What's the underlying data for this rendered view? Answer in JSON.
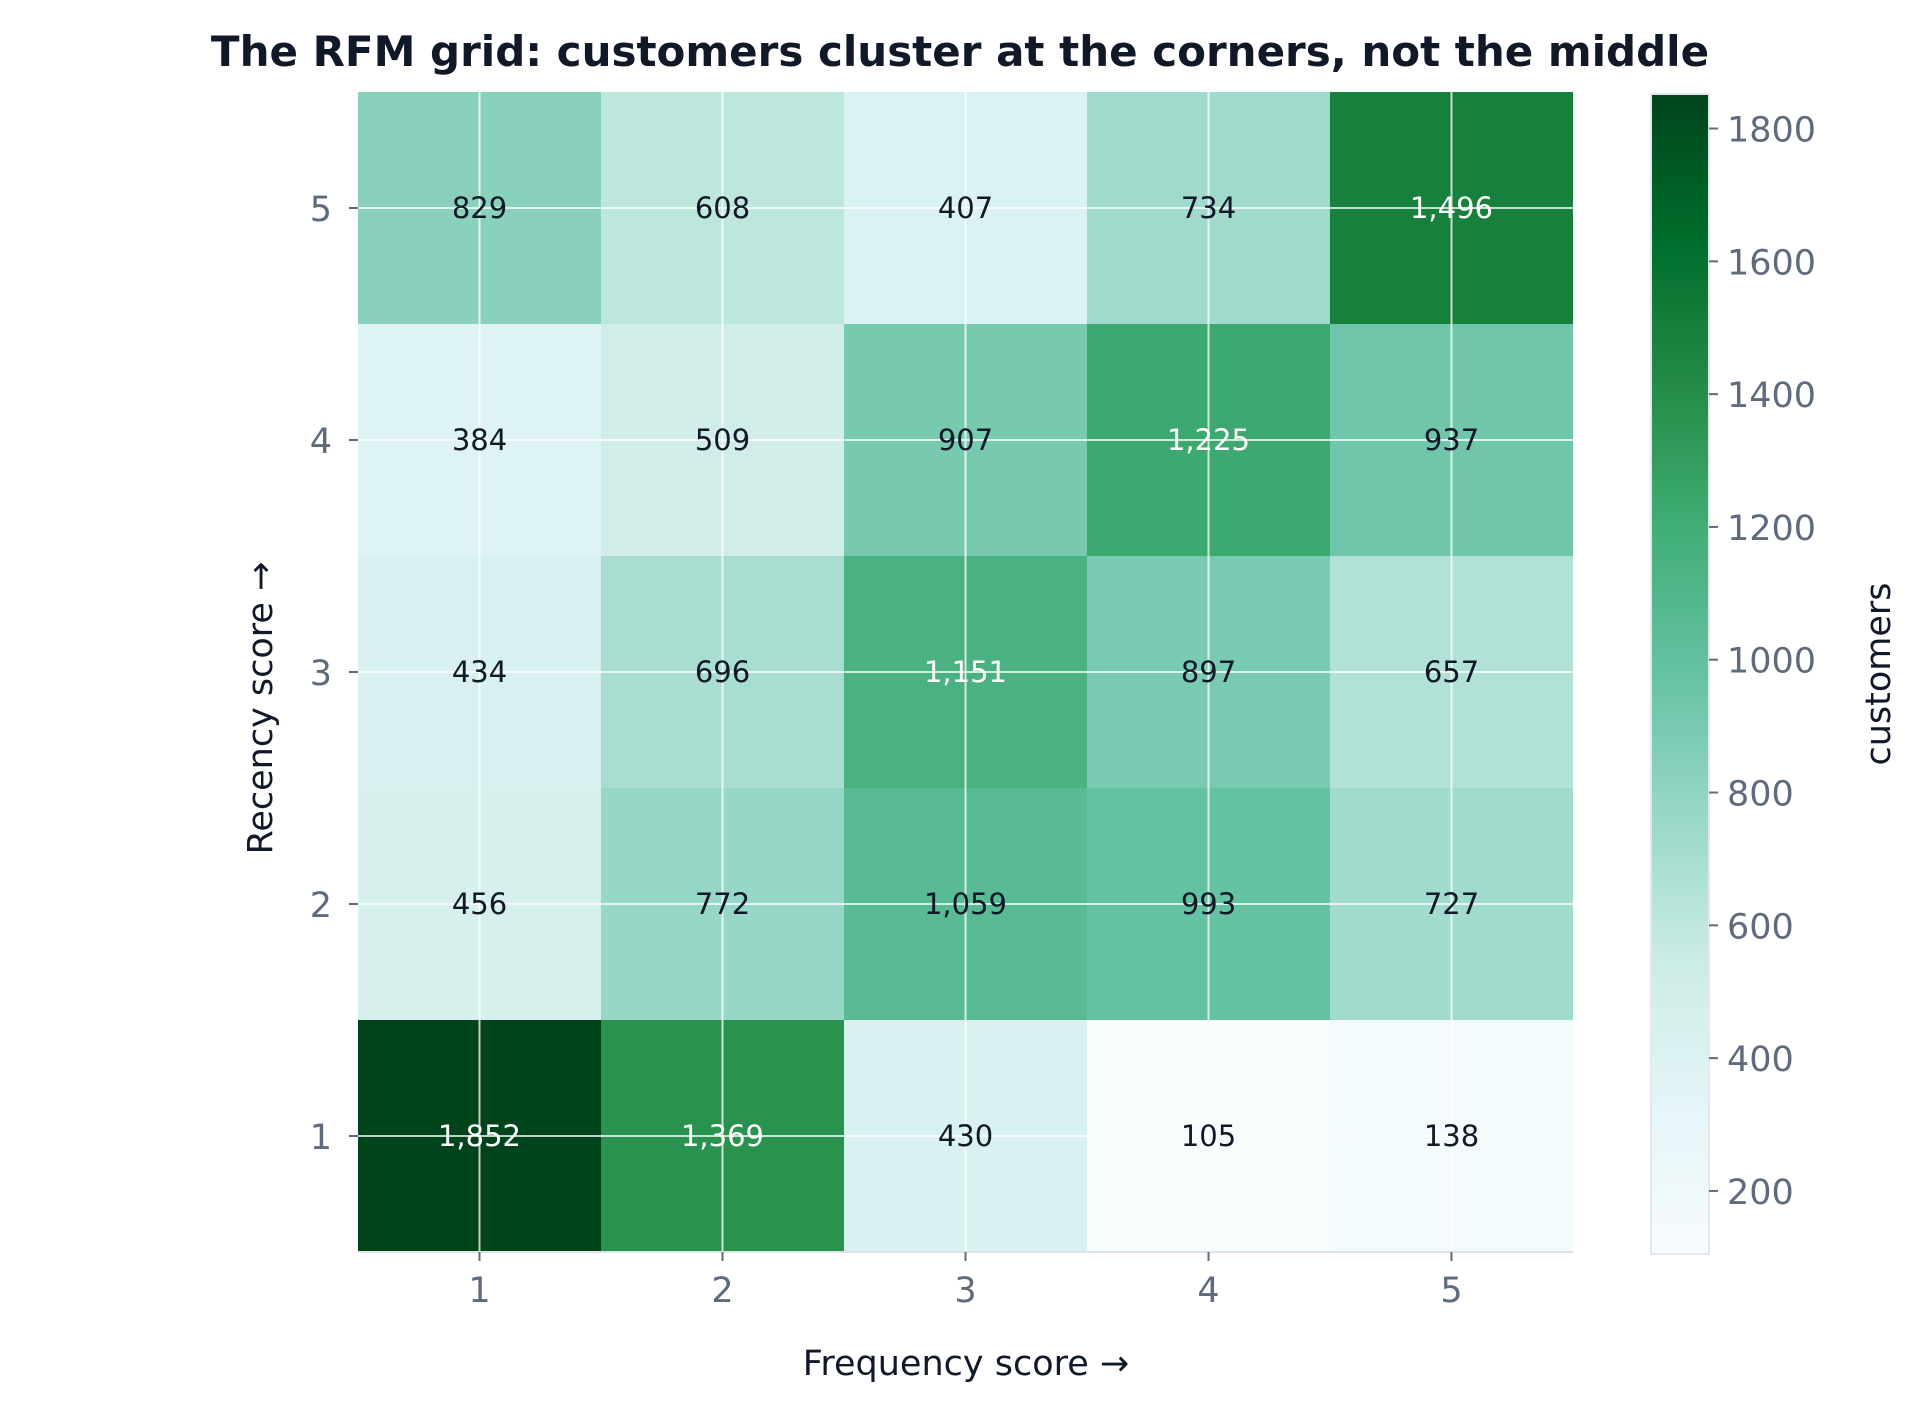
{
  "chart_data": {
    "type": "heatmap",
    "title": "The RFM grid: customers cluster at the corners, not the middle",
    "xlabel": "Frequency score →",
    "ylabel": "Recency score →",
    "x_categories": [
      "1",
      "2",
      "3",
      "4",
      "5"
    ],
    "y_categories": [
      "1",
      "2",
      "3",
      "4",
      "5"
    ],
    "y_order": "bottom-to-top",
    "values": [
      [
        1852,
        1369,
        430,
        105,
        138
      ],
      [
        456,
        772,
        1059,
        993,
        727
      ],
      [
        434,
        696,
        1151,
        897,
        657
      ],
      [
        384,
        509,
        907,
        1225,
        937
      ],
      [
        829,
        608,
        407,
        734,
        1496
      ]
    ],
    "value_labels": [
      [
        "1,852",
        "1,369",
        "430",
        "105",
        "138"
      ],
      [
        "456",
        "772",
        "1,059",
        "993",
        "727"
      ],
      [
        "434",
        "696",
        "1,151",
        "897",
        "657"
      ],
      [
        "384",
        "509",
        "907",
        "1,225",
        "937"
      ],
      [
        "829",
        "608",
        "407",
        "734",
        "1,496"
      ]
    ],
    "colorbar": {
      "label": "customers",
      "range": [
        105,
        1852
      ],
      "ticks": [
        200,
        400,
        600,
        800,
        1000,
        1200,
        1400,
        1600,
        1800
      ],
      "colormap": "BuGn",
      "colors": [
        "#f7fcfd",
        "#e5f5f9",
        "#ccece6",
        "#99d8c9",
        "#66c2a4",
        "#41ae76",
        "#238b45",
        "#006d2c",
        "#00441b"
      ]
    },
    "grid": true,
    "label_colors": {
      "dark": "#111827",
      "light": "#ffffff"
    }
  }
}
